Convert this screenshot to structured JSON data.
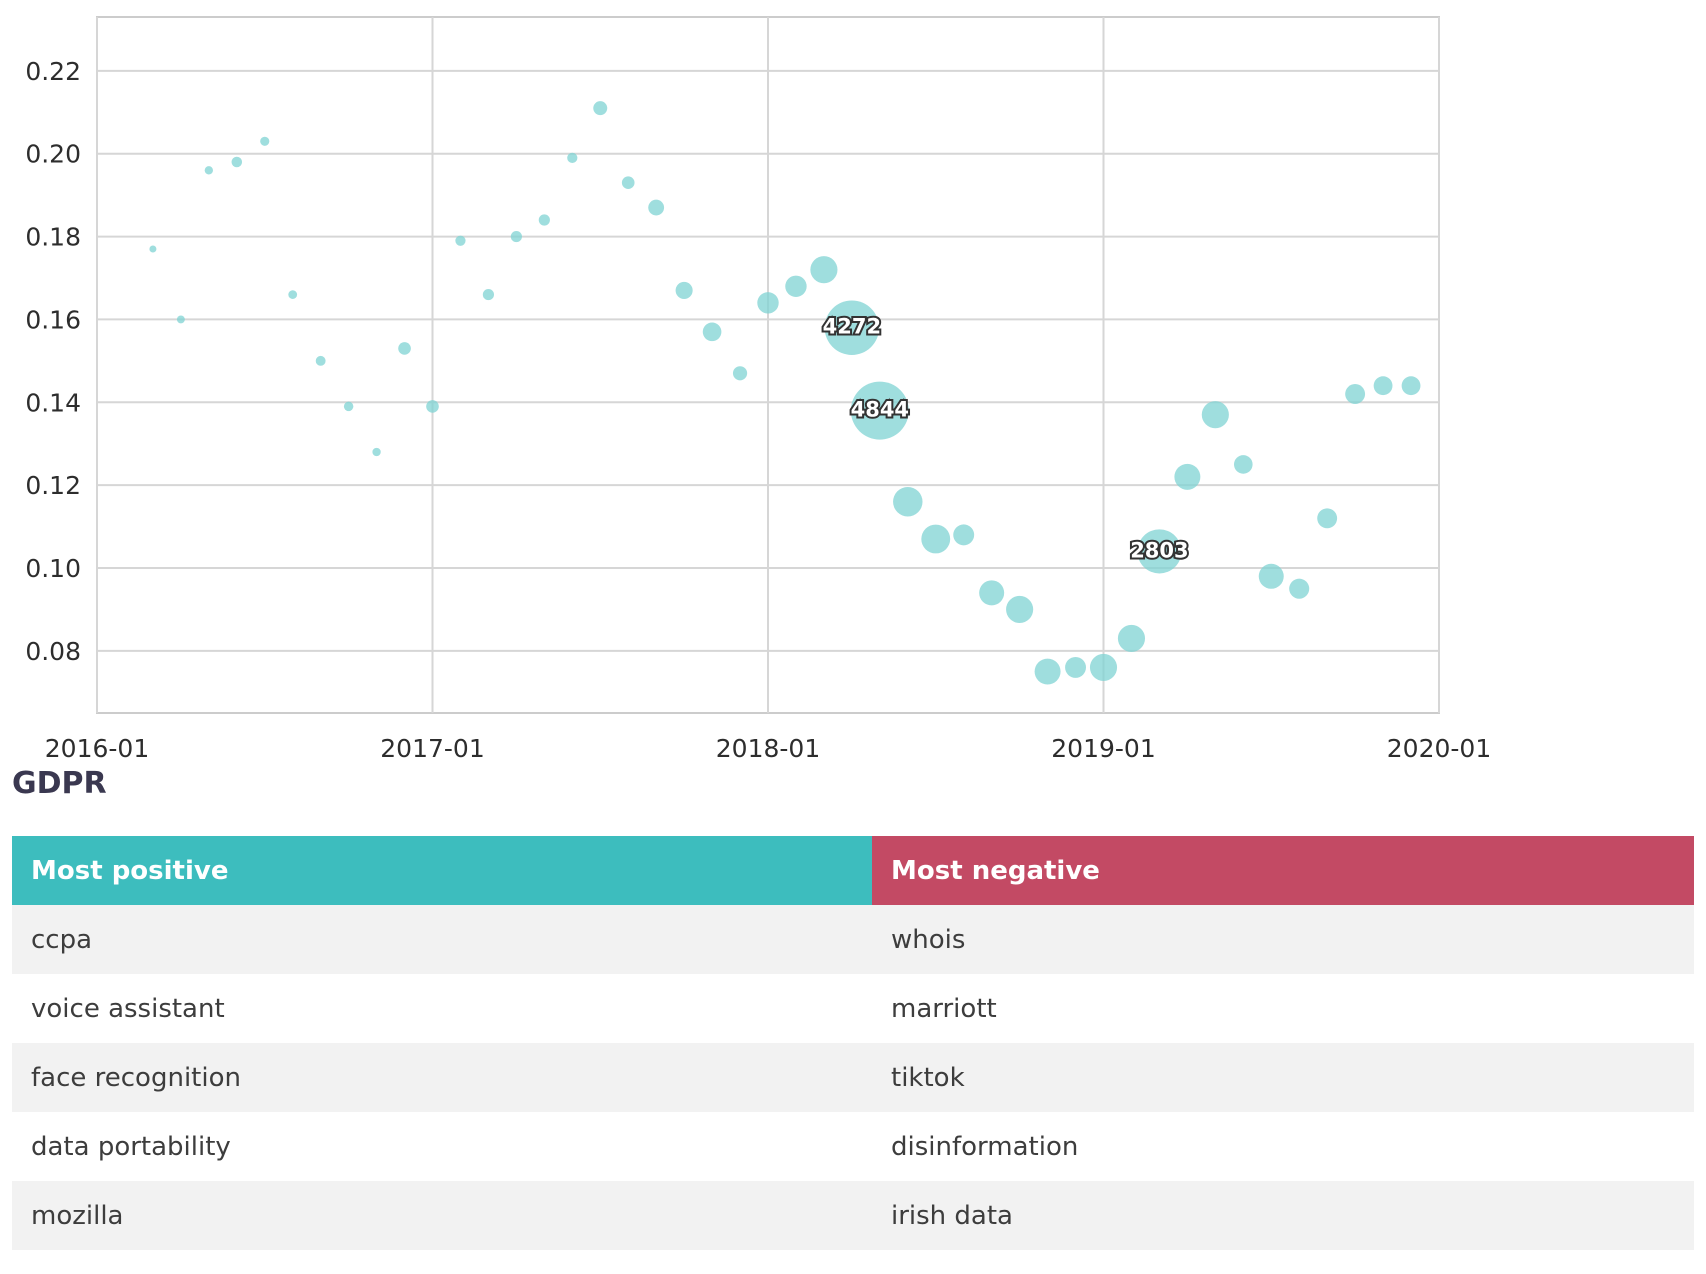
{
  "chart_data": {
    "type": "scatter",
    "title": "",
    "xlabel": "",
    "ylabel": "",
    "xlim": [
      "2016-01",
      "2020-01"
    ],
    "ylim": [
      0.065,
      0.233
    ],
    "x_ticks": [
      "2016-01",
      "2017-01",
      "2018-01",
      "2019-01",
      "2020-01"
    ],
    "y_ticks": [
      "0.08",
      "0.10",
      "0.12",
      "0.14",
      "0.16",
      "0.18",
      "0.20",
      "0.22"
    ],
    "grid": true,
    "color": "#7fd3d3",
    "points": [
      {
        "x": "2016-03",
        "y": 0.177,
        "size": 40
      },
      {
        "x": "2016-04",
        "y": 0.16,
        "size": 90
      },
      {
        "x": "2016-05",
        "y": 0.196,
        "size": 100
      },
      {
        "x": "2016-06",
        "y": 0.198,
        "size": 160
      },
      {
        "x": "2016-07",
        "y": 0.203,
        "size": 120
      },
      {
        "x": "2016-08",
        "y": 0.166,
        "size": 110
      },
      {
        "x": "2016-09",
        "y": 0.15,
        "size": 140
      },
      {
        "x": "2016-10",
        "y": 0.139,
        "size": 130
      },
      {
        "x": "2016-11",
        "y": 0.128,
        "size": 100
      },
      {
        "x": "2016-12",
        "y": 0.153,
        "size": 230
      },
      {
        "x": "2017-01",
        "y": 0.139,
        "size": 230
      },
      {
        "x": "2017-02",
        "y": 0.179,
        "size": 150
      },
      {
        "x": "2017-03",
        "y": 0.166,
        "size": 180
      },
      {
        "x": "2017-04",
        "y": 0.18,
        "size": 180
      },
      {
        "x": "2017-05",
        "y": 0.184,
        "size": 180
      },
      {
        "x": "2017-06",
        "y": 0.199,
        "size": 150
      },
      {
        "x": "2017-07",
        "y": 0.211,
        "size": 280
      },
      {
        "x": "2017-08",
        "y": 0.193,
        "size": 230
      },
      {
        "x": "2017-09",
        "y": 0.187,
        "size": 360
      },
      {
        "x": "2017-10",
        "y": 0.167,
        "size": 420
      },
      {
        "x": "2017-11",
        "y": 0.157,
        "size": 500
      },
      {
        "x": "2017-12",
        "y": 0.147,
        "size": 290
      },
      {
        "x": "2018-01",
        "y": 0.164,
        "size": 660
      },
      {
        "x": "2018-02",
        "y": 0.168,
        "size": 660
      },
      {
        "x": "2018-03",
        "y": 0.172,
        "size": 1060
      },
      {
        "x": "2018-04",
        "y": 0.158,
        "size": 4272,
        "label": "4272"
      },
      {
        "x": "2018-05",
        "y": 0.138,
        "size": 4844,
        "label": "4844"
      },
      {
        "x": "2018-06",
        "y": 0.116,
        "size": 1250
      },
      {
        "x": "2018-07",
        "y": 0.107,
        "size": 1200
      },
      {
        "x": "2018-08",
        "y": 0.108,
        "size": 630
      },
      {
        "x": "2018-09",
        "y": 0.094,
        "size": 900
      },
      {
        "x": "2018-10",
        "y": 0.09,
        "size": 1060
      },
      {
        "x": "2018-11",
        "y": 0.075,
        "size": 970
      },
      {
        "x": "2018-12",
        "y": 0.076,
        "size": 630
      },
      {
        "x": "2019-01",
        "y": 0.076,
        "size": 1060
      },
      {
        "x": "2019-02",
        "y": 0.083,
        "size": 1060
      },
      {
        "x": "2019-03",
        "y": 0.104,
        "size": 2803,
        "label": "2803"
      },
      {
        "x": "2019-04",
        "y": 0.122,
        "size": 970
      },
      {
        "x": "2019-05",
        "y": 0.137,
        "size": 1060
      },
      {
        "x": "2019-06",
        "y": 0.125,
        "size": 500
      },
      {
        "x": "2019-07",
        "y": 0.098,
        "size": 900
      },
      {
        "x": "2019-08",
        "y": 0.095,
        "size": 580
      },
      {
        "x": "2019-09",
        "y": 0.112,
        "size": 570
      },
      {
        "x": "2019-10",
        "y": 0.142,
        "size": 570
      },
      {
        "x": "2019-11",
        "y": 0.144,
        "size": 510
      },
      {
        "x": "2019-12",
        "y": 0.144,
        "size": 510
      }
    ]
  },
  "section": {
    "title": "GDPR"
  },
  "table": {
    "headers": {
      "positive": "Most positive",
      "negative": "Most negative",
      "positive_color": "#3dbdbe",
      "negative_color": "#c34a64"
    },
    "rows": [
      {
        "positive": "ccpa",
        "negative": "whois"
      },
      {
        "positive": "voice assistant",
        "negative": "marriott"
      },
      {
        "positive": "face recognition",
        "negative": "tiktok"
      },
      {
        "positive": "data portability",
        "negative": "disinformation"
      },
      {
        "positive": "mozilla",
        "negative": "irish data"
      }
    ]
  }
}
